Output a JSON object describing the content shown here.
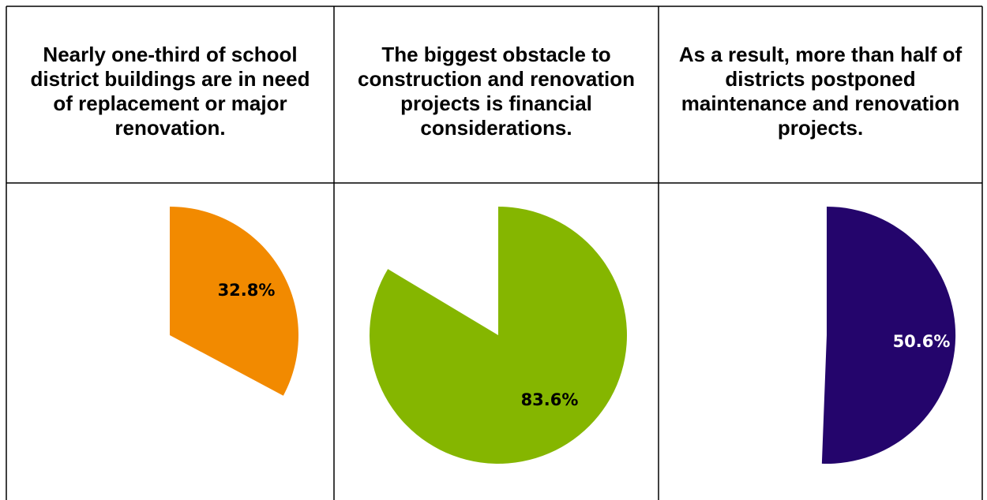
{
  "headers": [
    "Nearly one-third of school district buildings are in need of replacement or major renovation.",
    "The biggest obstacle to construction and renovation projects is financial considerations.",
    "As a result, more than half of districts postponed maintenance and renovation projects."
  ],
  "chart_data": [
    {
      "type": "pie",
      "title": "Nearly one-third of school district buildings are in need of replacement or major renovation.",
      "slices": [
        {
          "label": "32.8%",
          "value": 32.8,
          "color": "#F28A00",
          "label_color": "#000000"
        }
      ],
      "start_angle_deg": 0,
      "direction": "clockwise",
      "remaining_slice_shown": false
    },
    {
      "type": "pie",
      "title": "The biggest obstacle to construction and renovation projects is financial considerations.",
      "slices": [
        {
          "label": "83.6%",
          "value": 83.6,
          "color": "#85B600",
          "label_color": "#000000"
        }
      ],
      "start_angle_deg": 0,
      "direction": "clockwise",
      "remaining_slice_shown": false
    },
    {
      "type": "pie",
      "title": "As a result, more than half of districts postponed maintenance and renovation projects.",
      "slices": [
        {
          "label": "50.6%",
          "value": 50.6,
          "color": "#24056C",
          "label_color": "#ffffff"
        }
      ],
      "start_angle_deg": 0,
      "direction": "clockwise",
      "remaining_slice_shown": false
    }
  ]
}
